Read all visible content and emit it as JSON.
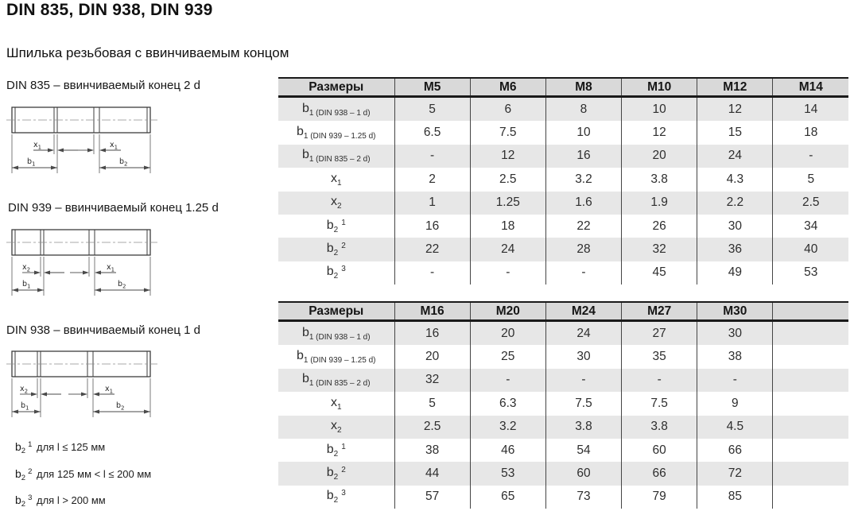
{
  "page": {
    "title": "DIN 835, DIN 938, DIN 939",
    "subtitle": "Шпилька резьбовая с ввинчиваемым концом"
  },
  "colors": {
    "header_bg": "#d9d9d9",
    "row_shaded": "#e7e7e7",
    "border_dark": "#1a1a1a",
    "line": "#454545"
  },
  "sections": [
    {
      "label": "DIN 835 – ввинчиваемый конец 2 d",
      "dims": {
        "x_left": {
          "base": "x",
          "sub": "1"
        },
        "x_right": {
          "base": "x",
          "sub": "1"
        },
        "b_left": {
          "base": "b",
          "sub": "1"
        },
        "b_right": {
          "base": "b",
          "sub": "2"
        }
      }
    },
    {
      "label": "DIN 939 – ввинчиваемый конец 1.25 d",
      "dims": {
        "x_left": {
          "base": "x",
          "sub": "2"
        },
        "x_right": {
          "base": "x",
          "sub": "1"
        },
        "b_left": {
          "base": "b",
          "sub": "1"
        },
        "b_right": {
          "base": "b",
          "sub": "2"
        }
      }
    },
    {
      "label": "DIN 938 – ввинчиваемый конец 1 d",
      "dims": {
        "x_left": {
          "base": "x",
          "sub": "2"
        },
        "x_right": {
          "base": "x",
          "sub": "1"
        },
        "b_left": {
          "base": "b",
          "sub": "1"
        },
        "b_right": {
          "base": "b",
          "sub": "2"
        }
      }
    }
  ],
  "footnotes": [
    {
      "base": "b",
      "sub": "2",
      "sup": "1",
      "text": " для l ≤ 125 мм"
    },
    {
      "base": "b",
      "sub": "2",
      "sup": "2",
      "text": " для 125 мм < l ≤ 200 мм"
    },
    {
      "base": "b",
      "sub": "2",
      "sup": "3",
      "text": " для l > 200 мм"
    }
  ],
  "tables": [
    {
      "header": [
        "Размеры",
        "M5",
        "M6",
        "M8",
        "M10",
        "M12",
        "M14"
      ],
      "rows": [
        {
          "label": {
            "base": "b",
            "sub": "1 (DIN 938 – 1 d)"
          },
          "values": [
            "5",
            "6",
            "8",
            "10",
            "12",
            "14"
          ]
        },
        {
          "label": {
            "base": "b",
            "sub": "1 (DIN 939 – 1.25 d)"
          },
          "values": [
            "6.5",
            "7.5",
            "10",
            "12",
            "15",
            "18"
          ]
        },
        {
          "label": {
            "base": "b",
            "sub": "1 (DIN 835 – 2 d)"
          },
          "values": [
            "-",
            "12",
            "16",
            "20",
            "24",
            "-"
          ]
        },
        {
          "label": {
            "base": "x",
            "sub": "1"
          },
          "values": [
            "2",
            "2.5",
            "3.2",
            "3.8",
            "4.3",
            "5"
          ]
        },
        {
          "label": {
            "base": "x",
            "sub": "2"
          },
          "values": [
            "1",
            "1.25",
            "1.6",
            "1.9",
            "2.2",
            "2.5"
          ]
        },
        {
          "label": {
            "base": "b",
            "sub": "2",
            "sup": "1"
          },
          "values": [
            "16",
            "18",
            "22",
            "26",
            "30",
            "34"
          ]
        },
        {
          "label": {
            "base": "b",
            "sub": "2",
            "sup": "2"
          },
          "values": [
            "22",
            "24",
            "28",
            "32",
            "36",
            "40"
          ]
        },
        {
          "label": {
            "base": "b",
            "sub": "2",
            "sup": "3"
          },
          "values": [
            "-",
            "-",
            "-",
            "45",
            "49",
            "53"
          ]
        }
      ]
    },
    {
      "header": [
        "Размеры",
        "M16",
        "M20",
        "M24",
        "M27",
        "M30",
        ""
      ],
      "rows": [
        {
          "label": {
            "base": "b",
            "sub": "1 (DIN 938 – 1 d)"
          },
          "values": [
            "16",
            "20",
            "24",
            "27",
            "30",
            ""
          ]
        },
        {
          "label": {
            "base": "b",
            "sub": "1 (DIN 939 – 1.25 d)"
          },
          "values": [
            "20",
            "25",
            "30",
            "35",
            "38",
            ""
          ]
        },
        {
          "label": {
            "base": "b",
            "sub": "1 (DIN 835 – 2 d)"
          },
          "values": [
            "32",
            "-",
            "-",
            "-",
            "-",
            ""
          ]
        },
        {
          "label": {
            "base": "x",
            "sub": "1"
          },
          "values": [
            "5",
            "6.3",
            "7.5",
            "7.5",
            "9",
            ""
          ]
        },
        {
          "label": {
            "base": "x",
            "sub": "2"
          },
          "values": [
            "2.5",
            "3.2",
            "3.8",
            "3.8",
            "4.5",
            ""
          ]
        },
        {
          "label": {
            "base": "b",
            "sub": "2",
            "sup": "1"
          },
          "values": [
            "38",
            "46",
            "54",
            "60",
            "66",
            ""
          ]
        },
        {
          "label": {
            "base": "b",
            "sub": "2",
            "sup": "2"
          },
          "values": [
            "44",
            "53",
            "60",
            "66",
            "72",
            ""
          ]
        },
        {
          "label": {
            "base": "b",
            "sub": "2",
            "sup": "3"
          },
          "values": [
            "57",
            "65",
            "73",
            "79",
            "85",
            ""
          ]
        }
      ]
    }
  ]
}
